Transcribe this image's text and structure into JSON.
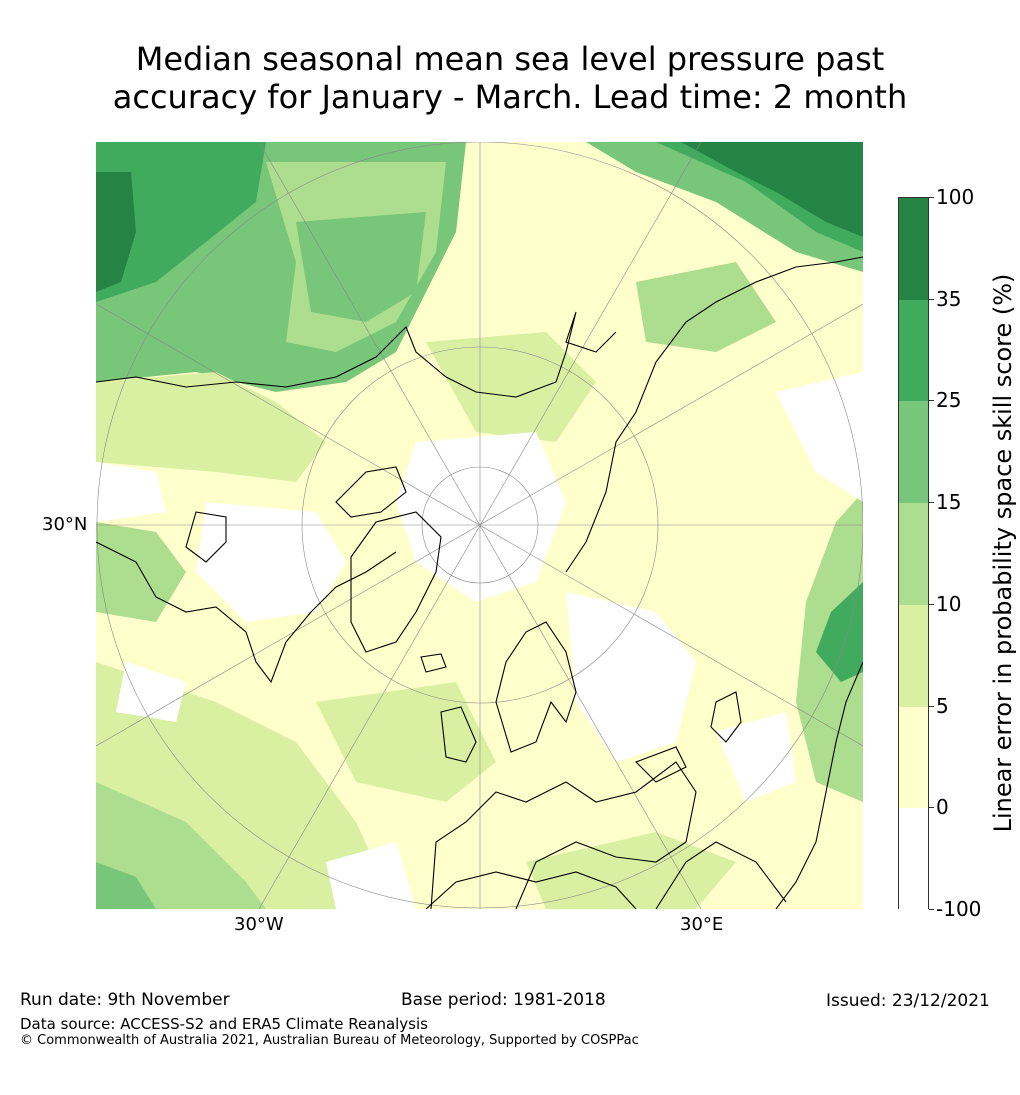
{
  "title_line1": "Median seasonal mean sea level pressure past",
  "title_line2": "accuracy for January - March. Lead time: 2 month",
  "map": {
    "projection": "north-polar-stereographic",
    "axis_labels": {
      "left": "30°N",
      "bottom_left": "30°W",
      "bottom_right": "30°E"
    },
    "ocean_base_color": "#ffffcc",
    "coastline_color": "#000000",
    "gridline_color": "#888888"
  },
  "colorbar": {
    "title": "Linear error in probability space skill score (%)",
    "tick_labels": [
      "100",
      "35",
      "25",
      "15",
      "10",
      "5",
      "0",
      "-100"
    ],
    "bins": [
      {
        "range": "35 to 100",
        "color": "#238443"
      },
      {
        "range": "25 to 35",
        "color": "#41ab5d"
      },
      {
        "range": "15 to 25",
        "color": "#78c679"
      },
      {
        "range": "10 to 15",
        "color": "#addd8e"
      },
      {
        "range": "5 to 10",
        "color": "#d9f0a3"
      },
      {
        "range": "0 to 5",
        "color": "#ffffcc"
      },
      {
        "range": "-100 to 0",
        "color": "#ffffff"
      }
    ]
  },
  "footer": {
    "run_date": "Run date: 9th November",
    "base_period": "Base period: 1981-2018",
    "issued": "Issued: 23/12/2021",
    "data_source": "Data source: ACCESS-S2 and ERA5 Climate Reanalysis",
    "copyright": "© Commonwealth of Australia 2021, Australian Bureau of Meteorology, Supported by COSPPac"
  }
}
